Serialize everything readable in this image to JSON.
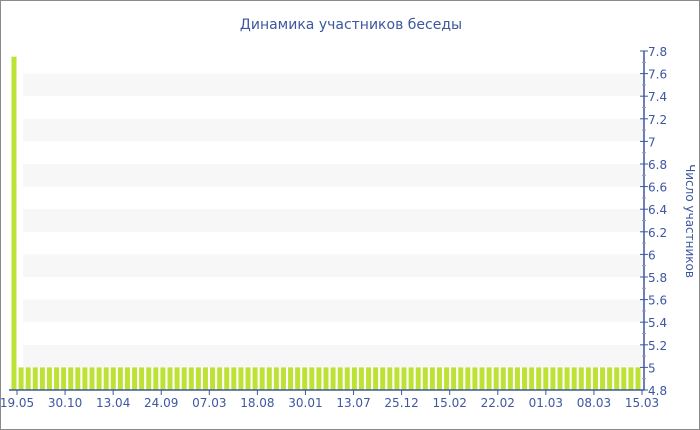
{
  "chart_data": {
    "type": "bar",
    "title": "Динамика участников беседы",
    "ylabel": "Число участников",
    "xlabel": "",
    "ylim": [
      4.8,
      7.8
    ],
    "yticks": [
      4.8,
      5,
      5.2,
      5.4,
      5.6,
      5.8,
      6,
      6.2,
      6.4,
      6.6,
      6.8,
      7,
      7.2,
      7.4,
      7.6,
      7.8
    ],
    "xtick_labels": [
      "19.05",
      "30.10",
      "13.04",
      "24.09",
      "07.03",
      "18.08",
      "30.01",
      "13.07",
      "25.12",
      "15.02",
      "22.02",
      "01.03",
      "08.03",
      "15.03"
    ],
    "first_value": 7.75,
    "other_value": 5,
    "bar_count": 89,
    "grid": "alternating horizontal bands",
    "colors": {
      "bar": "#bde236",
      "axis": "#3d57a0",
      "band": "#f7f7f7"
    }
  }
}
